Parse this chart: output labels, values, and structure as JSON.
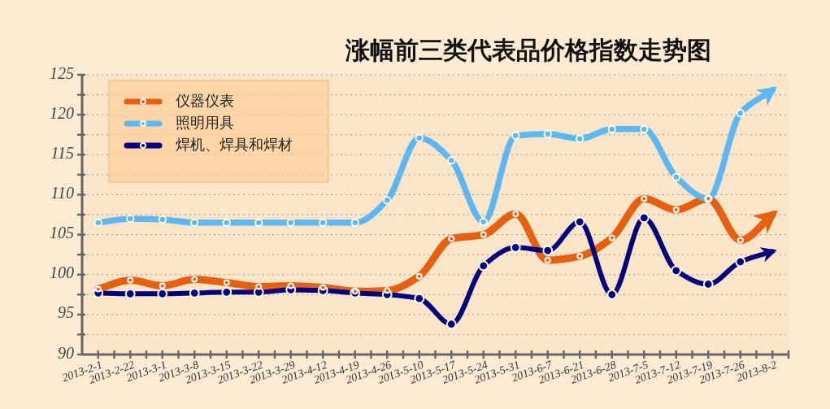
{
  "chart_data": {
    "type": "line",
    "title": "涨幅前三类代表品价格指数走势图",
    "categories": [
      "2013-2-1",
      "2013-2-22",
      "2013-3-1",
      "2013-3-8",
      "2013-3-15",
      "2013-3-22",
      "2013-3-29",
      "2013-4-12",
      "2013-4-19",
      "2013-4-26",
      "2013-5-10",
      "2013-5-17",
      "2013-5-24",
      "2013-5-31",
      "2013-6-7",
      "2013-6-21",
      "2013-6-28",
      "2013-7-5",
      "2013-7-12",
      "2013-7-19",
      "2013-7-26",
      "2013-8-2"
    ],
    "series": [
      {
        "name": "仪器仪表",
        "color": "#e8600f",
        "values": [
          98.2,
          99.3,
          98.6,
          99.4,
          99.0,
          98.5,
          98.6,
          98.4,
          97.9,
          98.0,
          99.8,
          104.5,
          105.0,
          107.6,
          101.8,
          102.3,
          104.6,
          109.5,
          108.1,
          109.5,
          104.3,
          107.5
        ]
      },
      {
        "name": "照明用具",
        "color": "#5bb8f5",
        "values": [
          106.5,
          107.0,
          106.9,
          106.5,
          106.5,
          106.5,
          106.5,
          106.5,
          106.5,
          109.3,
          117.1,
          114.3,
          106.6,
          117.4,
          117.6,
          117.0,
          118.2,
          118.2,
          112.2,
          109.5,
          120.2,
          123.1
        ]
      },
      {
        "name": "焊机、焊具和焊材",
        "color": "#000080",
        "values": [
          97.7,
          97.6,
          97.6,
          97.7,
          97.8,
          97.8,
          98.1,
          98.0,
          97.7,
          97.5,
          97.0,
          93.8,
          101.1,
          103.4,
          103.0,
          106.6,
          97.5,
          107.1,
          100.5,
          98.8,
          101.6,
          102.9
        ]
      }
    ],
    "ylim": [
      90,
      125
    ],
    "yticks": [
      90,
      {
        "value": 92.5,
        "label": null
      },
      95,
      {
        "value": 97.5,
        "label": null
      },
      100,
      {
        "value": 102.5,
        "label": null
      },
      105,
      {
        "value": 107.5,
        "label": null
      },
      110,
      {
        "value": 112.5,
        "label": null
      },
      115,
      {
        "value": 117.5,
        "label": null
      },
      120,
      {
        "value": 122.5,
        "label": null
      },
      125
    ],
    "grid": "y",
    "legend": "top left",
    "marker": "circle",
    "line_style": "solid"
  }
}
